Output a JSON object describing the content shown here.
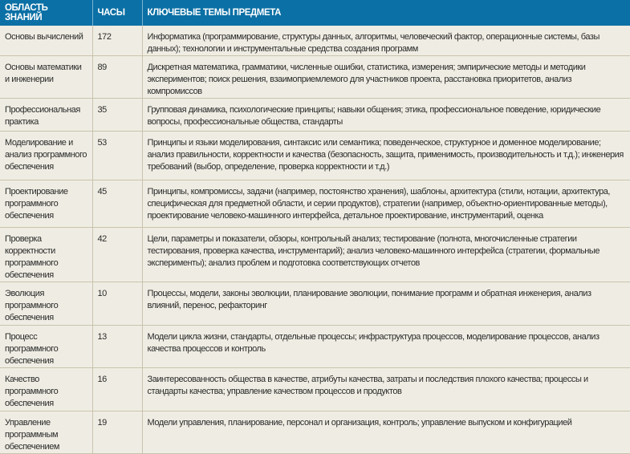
{
  "headers": [
    "ОБЛАСТЬ ЗНАНИЙ",
    "ЧАСЫ",
    "КЛЮЧЕВЫЕ ТЕМЫ ПРЕДМЕТА"
  ],
  "rows": [
    {
      "area": "Основы вычислений",
      "hours": "172",
      "topics": "Информатика (программирование, структуры данных, алгоритмы, человеческий фактор, операционные системы, базы данных); технологии и инструментальные средства создания программ"
    },
    {
      "area": "Основы математики и инженерии",
      "hours": "89",
      "topics": "Дискретная математика, грамматики, численные ошибки, статистика, измерения; эмпирические методы и методики экспериментов; поиск решения, взаимоприемлемого для участников проекта, расстановка приоритетов, анализ компромиссов"
    },
    {
      "area": "Профессиональная практика",
      "hours": "35",
      "topics": "Групповая динамика, психологические принципы; навыки общения; этика, профессиональное поведение, юридические вопросы, профессиональные общества, стандарты"
    },
    {
      "area": "Моделирование и анализ программного обеспечения",
      "hours": "53",
      "topics": "Принципы и языки моделирования, синтаксис или семантика; поведенческое, структурное и доменное моделирование; анализ правильности, корректности и качества (безопасность, защита, применимость, производительность и т.д.); инженерия требований (выбор, определение, проверка корректности и т.д.)"
    },
    {
      "area": "Проектирование программного обеспечения",
      "hours": "45",
      "topics": "Принципы, компромиссы, задачи (например, постоянство хранения), шаблоны, архитектура (стили, нотации, архитектура, специфическая для предметной области, и серии продуктов), стратегии (например, объектно-ориентированные методы), проектирование человеко-машинного интерфейса, детальное проектирование, инструментарий, оценка"
    },
    {
      "area": "Проверка корректности программного обеспечения",
      "hours": "42",
      "topics": "Цели, параметры и показатели, обзоры, контрольный анализ; тестирование (полнота, многочисленные стратегии тестирования, проверка качества, инструментарий); анализ человеко-машинного интерфейса (стратегии, формальные эксперименты); анализ проблем и подготовка соответствующих отчетов"
    },
    {
      "area": "Эволюция программного обеспечения",
      "hours": "10",
      "topics": "Процессы, модели, законы эволюции, планирование эволюции, понимание программ и обратная инженерия, анализ влияний, перенос, рефакторинг"
    },
    {
      "area": "Процесс программного обеспечения",
      "hours": "13",
      "topics": "Модели цикла жизни, стандарты, отдельные процессы; инфраструктура процессов, моделирование процессов, анализ качества процессов и контроль"
    },
    {
      "area": "Качество программного обеспечения",
      "hours": "16",
      "topics": "Заинтересованность общества в качестве, атрибуты качества, затраты и последствия плохого качества; процессы и стандарты качества; управление качеством процессов и продуктов"
    },
    {
      "area": "Управление программным обеспечением",
      "hours": "19",
      "topics": "Модели управления, планирование, персонал и организация, контроль; управление выпуском и конфигурацией"
    }
  ]
}
